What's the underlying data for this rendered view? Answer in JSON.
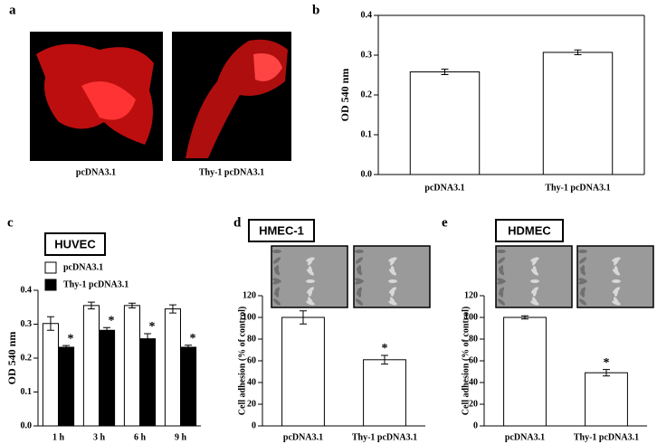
{
  "panel_a": {
    "label": "a",
    "captions": [
      "pcDNA3.1",
      "Thy-1 pcDNA3.1"
    ]
  },
  "chart_data": [
    {
      "type": "bar",
      "panel": "b",
      "ylabel": "OD 540 nm",
      "categories": [
        "pcDNA3.1",
        "Thy-1 pcDNA3.1"
      ],
      "values": [
        0.258,
        0.307
      ],
      "errors": [
        0.007,
        0.006
      ],
      "color": "#ffffff",
      "ylim": [
        0,
        0.4
      ],
      "yticks": [
        {
          "value": 0,
          "label": "0.0"
        },
        0.1,
        0.2,
        0.3,
        0.4
      ]
    },
    {
      "type": "bar",
      "panel": "c",
      "cell_line": "HUVEC",
      "ylabel": "OD 540 nm",
      "categories": [
        "1 h",
        "3 h",
        "6 h",
        "9 h"
      ],
      "series": [
        {
          "name": "pcDNA3.1",
          "color": "#ffffff",
          "values": [
            0.302,
            0.355,
            0.355,
            0.345
          ],
          "errors": [
            0.02,
            0.01,
            0.007,
            0.012
          ]
        },
        {
          "name": "Thy-1 pcDNA3.1",
          "color": "#000000",
          "values": [
            0.232,
            0.282,
            0.257,
            0.232
          ],
          "errors": [
            0.005,
            0.008,
            0.015,
            0.006
          ],
          "value_annotations": [
            "*",
            "*",
            "*",
            "*"
          ]
        }
      ],
      "ylim": [
        0,
        0.4
      ],
      "yticks": [
        {
          "value": 0,
          "label": "0.0"
        },
        0.1,
        0.2,
        0.3,
        0.4
      ]
    },
    {
      "type": "bar",
      "panel": "d",
      "cell_line": "HMEC-1",
      "ylabel": "Cell adhesion (% of control)",
      "categories": [
        "pcDNA3.1",
        "Thy-1 pcDNA3.1"
      ],
      "values": [
        100,
        61
      ],
      "errors": [
        6,
        4
      ],
      "value_annotations": [
        null,
        "*"
      ],
      "color": "#ffffff",
      "ylim": [
        0,
        120
      ],
      "yticks": [
        0,
        20,
        40,
        60,
        80,
        100,
        120
      ]
    },
    {
      "type": "bar",
      "panel": "e",
      "cell_line": "HDMEC",
      "ylabel": "Cell adhesion (% of control)",
      "categories": [
        "pcDNA3.1",
        "Thy-1 pcDNA3.1"
      ],
      "values": [
        100,
        49
      ],
      "errors": [
        1.5,
        3
      ],
      "value_annotations": [
        null,
        "*"
      ],
      "color": "#ffffff",
      "ylim": [
        0,
        120
      ],
      "yticks": [
        0,
        20,
        40,
        60,
        80,
        100,
        120
      ]
    }
  ]
}
